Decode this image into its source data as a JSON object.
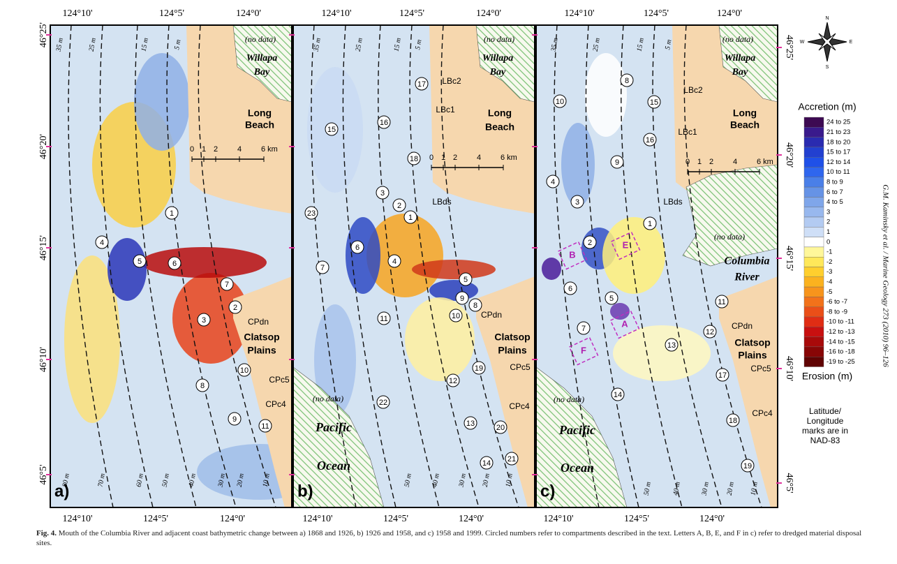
{
  "figure": {
    "panels": [
      {
        "letter": "a)",
        "lon_top": [
          "124°10'",
          "124°5'",
          "124°0'"
        ],
        "lon_bottom": [
          "124°10'",
          "124°5'",
          "124°0'"
        ],
        "compartments": [
          "1",
          "4",
          "5",
          "6",
          "7",
          "2",
          "3",
          "10",
          "8",
          "9",
          "11"
        ],
        "places": [
          "(no data)",
          "Willapa",
          "Bay",
          "Long",
          "Beach",
          "CPdn",
          "Clatsop",
          "Plains",
          "CPc5",
          "CPc4"
        ],
        "depths_top": [
          "35 m",
          "25 m",
          "15 m",
          "5 m"
        ],
        "depths_bottom": [
          "80 m",
          "70 m",
          "60 m",
          "50 m",
          "40 m",
          "30 m",
          "20 m",
          "10 m"
        ],
        "scale": [
          "0",
          "1",
          "2",
          "4",
          "6 km"
        ]
      },
      {
        "letter": "b)",
        "lon_top": [
          "124°10'",
          "124°5'",
          "124°0'"
        ],
        "lon_bottom": [
          "124°10'",
          "124°5'",
          "124°0'"
        ],
        "compartments": [
          "17",
          "15",
          "16",
          "18",
          "3",
          "2",
          "1",
          "23",
          "6",
          "7",
          "4",
          "5",
          "9",
          "8",
          "10",
          "11",
          "19",
          "12",
          "22",
          "13",
          "20",
          "14",
          "21"
        ],
        "places": [
          "(no data)",
          "Willapa",
          "Bay",
          "LBc2",
          "LBc1",
          "Long",
          "Beach",
          "LBds",
          "CPdn",
          "Clatsop",
          "Plains",
          "CPc5",
          "CPc4",
          "(no data)",
          "Pacific",
          "Ocean"
        ],
        "depths_top": [
          "35 m",
          "25 m",
          "15 m",
          "5 m"
        ],
        "depths_bottom": [
          "50 m",
          "40 m",
          "30 m",
          "20 m",
          "10 m"
        ],
        "scale": [
          "0",
          "1",
          "2",
          "4",
          "6 km"
        ]
      },
      {
        "letter": "c)",
        "lon_top": [
          "124°10'",
          "124°5'",
          "124°0'"
        ],
        "lon_bottom": [
          "124°10'",
          "124°5'",
          "124°0'"
        ],
        "compartments": [
          "10",
          "8",
          "15",
          "16",
          "9",
          "4",
          "3",
          "1",
          "2",
          "6",
          "5",
          "7",
          "13",
          "11",
          "12",
          "17",
          "14",
          "18",
          "19"
        ],
        "sites": [
          "B",
          "E",
          "A",
          "F"
        ],
        "places": [
          "(no data)",
          "Willapa",
          "Bay",
          "LBc2",
          "LBc1",
          "Long",
          "Beach",
          "LBds",
          "(no data)",
          "Columbia",
          "River",
          "CPdn",
          "Clatsop",
          "Plains",
          "CPc5",
          "CPc4",
          "(no data)",
          "Pacific",
          "Ocean"
        ],
        "depths_top": [
          "35 m",
          "25 m",
          "15 m",
          "5 m"
        ],
        "depths_bottom": [
          "50 m",
          "40 m",
          "30 m",
          "20 m",
          "10 m"
        ],
        "scale": [
          "0",
          "1",
          "2",
          "4",
          "6 km"
        ]
      }
    ],
    "lat_left": [
      "46°25'",
      "46°20'",
      "46°15'",
      "46°10'",
      "46°5'"
    ],
    "lat_right": [
      "46°25'",
      "46°20'",
      "46°15'",
      "46°10'",
      "46°5'"
    ],
    "compass": [
      "N",
      "E",
      "S",
      "W"
    ],
    "legend": {
      "title": "Accretion (m)",
      "footer": "Erosion (m)",
      "classes": [
        "24 to 25",
        "21 to 23",
        "18 to 20",
        "15 to 17",
        "12 to 14",
        "10 to 11",
        "8 to 9",
        "6 to 7",
        "4 to 5",
        "3",
        "2",
        "1",
        "0",
        "-1",
        "-2",
        "-3",
        "-4",
        "-5",
        "-6 to -7",
        "-8 to -9",
        "-10 to -11",
        "-12 to -13",
        "-14 to -15",
        "-16 to -18",
        "-19 to -25"
      ],
      "colors": [
        "#3d0a52",
        "#3a1a8c",
        "#2a2bb0",
        "#2240d0",
        "#1f50e8",
        "#2f66ee",
        "#4a7fe8",
        "#6693e6",
        "#7fa6ea",
        "#98b8ee",
        "#b3cbf2",
        "#cfdff7",
        "#ffffff",
        "#fff79a",
        "#ffe85a",
        "#ffcf2e",
        "#fbb21f",
        "#f7941c",
        "#f2721a",
        "#ea4f18",
        "#e02d14",
        "#c81010",
        "#a80a0a",
        "#880606",
        "#600303"
      ]
    },
    "datum_note": [
      "Latitude/",
      "Longitude",
      "marks are in",
      "NAD-83"
    ],
    "citation": "G.M. Kaminsky et al. / Marine Geology 273 (2010) 96–126",
    "caption": {
      "label": "Fig. 4.",
      "text": "Mouth of the Columbia River and adjacent coast bathymetric change between a) 1868 and 1926, b) 1926 and 1958, and c) 1958 and 1999. Circled numbers refer to compartments described in the text. Letters A, B, E, and F in c) refer to dredged material disposal sites."
    }
  }
}
